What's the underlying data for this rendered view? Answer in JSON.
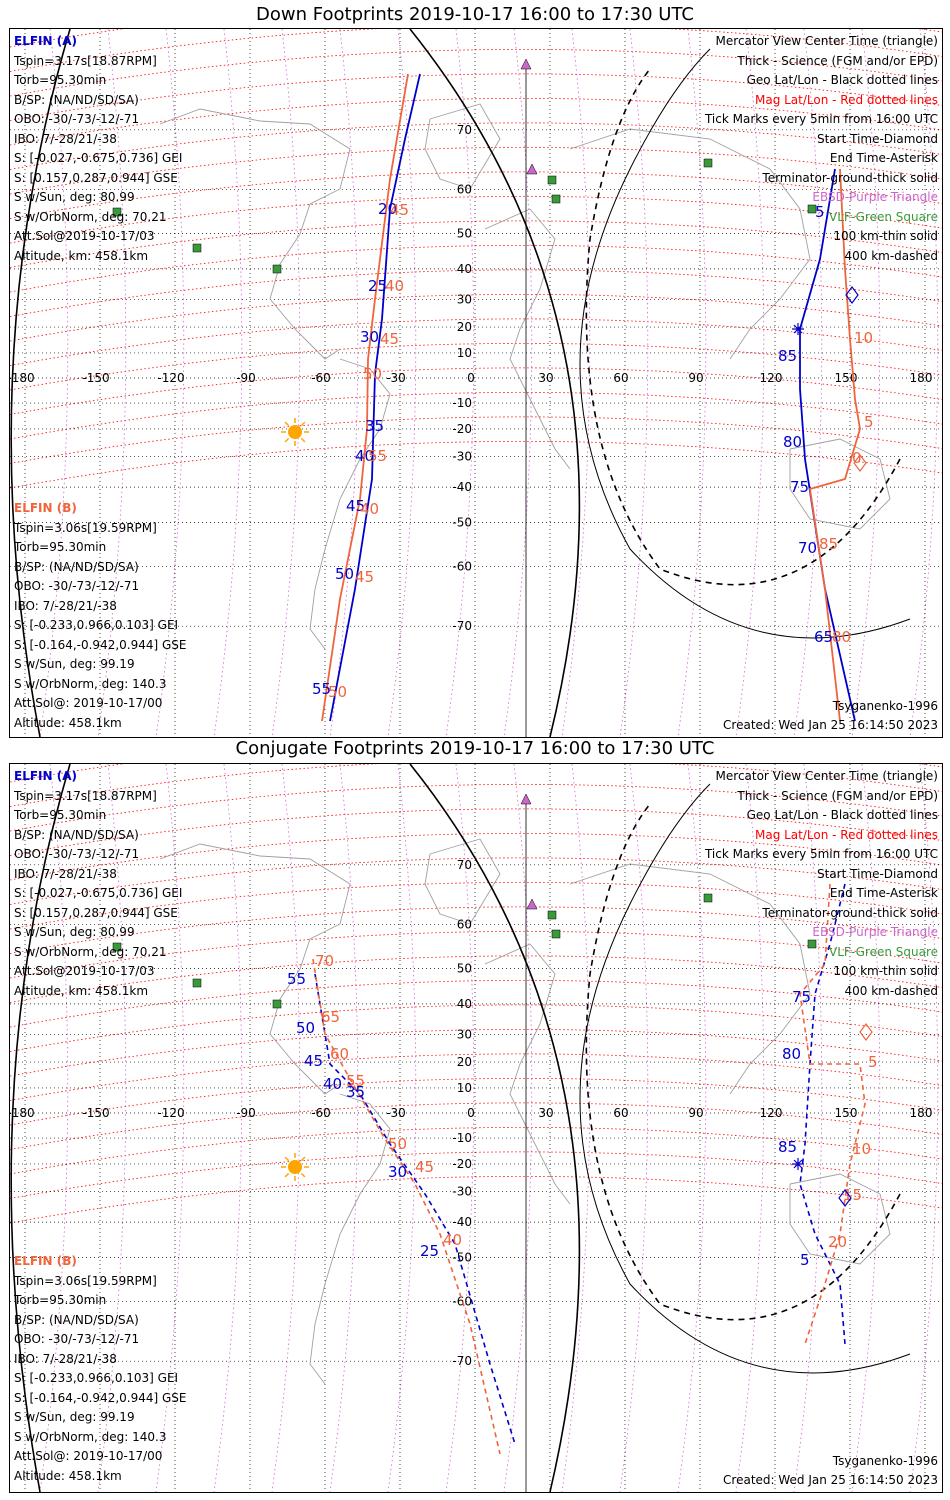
{
  "colors": {
    "elfin_a": "#0000cc",
    "elfin_b": "#f0643c",
    "mag_grid": "#ff0000",
    "geo_grid": "#000000",
    "ebsd": "#cc66cc",
    "vlf": "#3a9a3a",
    "sun": "#ffa500",
    "coast": "#a0a0a0"
  },
  "panels": [
    {
      "title": "Down Footprints 2019-10-17 16:00 to 17:30 UTC",
      "elfin_a": {
        "header": "ELFIN (A)",
        "lines": [
          "Tspin=3.17s[18.87RPM]",
          "Torb=95.30min",
          "B/SP: (NA/ND/SD/SA)",
          "OBO: -30/-73/-12/-71",
          "IBO: 7/-28/21/-38",
          "S: [-0.027,-0.675,0.736] GEI",
          "S: [0.157,0.287,0.944] GSE",
          "S w/Sun, deg: 80.99",
          "S w/OrbNorm, deg: 70.21",
          "Att.Sol@2019-10-17/03",
          "Altitude, km: 458.1km"
        ]
      },
      "elfin_b": {
        "header": "ELFIN (B)",
        "lines": [
          "Tspin=3.06s[19.59RPM]",
          "Torb=95.30min",
          "B/SP: (NA/ND/SD/SA)",
          "OBO: -30/-73/-12/-71",
          "IBO: 7/-28/21/-38",
          "S: [-0.233,0.966,0.103] GEI",
          "S: [-0.164,-0.942,0.944] GSE",
          "S w/Sun, deg: 99.19",
          "S w/OrbNorm, deg: 140.3",
          "Att.Sol@: 2019-10-17/00",
          "Altitude: 458.1km"
        ]
      },
      "legend": [
        "Mercator View Center Time (triangle)",
        "Thick - Science (FGM and/or EPD)",
        "Geo Lat/Lon - Black dotted lines",
        "Mag Lat/Lon - Red dotted lines",
        "Tick Marks every 5min from 16:00 UTC",
        "Start Time-Diamond",
        "End Time-Asterisk",
        "Terminator-ground-thick solid",
        "EBSD-Purple Triangle",
        "VLF-Green Square",
        "100 km-thin solid",
        "400 km-dashed"
      ],
      "model": "Tsyganenko-1996",
      "created": "Created: Wed Jan 25 16:14:50 2023",
      "a_ticks": [
        "20",
        "25",
        "30",
        "35",
        "40",
        "45",
        "50",
        "55",
        "5",
        "85",
        "80",
        "75",
        "70",
        "65"
      ],
      "b_ticks": [
        "45",
        "40",
        "45",
        "50",
        "55",
        "40",
        "45",
        "50",
        "10",
        "5",
        "0",
        "85",
        "80"
      ]
    },
    {
      "title": "Conjugate Footprints 2019-10-17 16:00 to 17:30 UTC",
      "elfin_a": {
        "header": "ELFIN (A)",
        "lines": [
          "Tspin=3.17s[18.87RPM]",
          "Torb=95.30min",
          "B/SP: (NA/ND/SD/SA)",
          "OBO: -30/-73/-12/-71",
          "IBO: 7/-28/21/-38",
          "S: [-0.027,-0.675,0.736] GEI",
          "S: [0.157,0.287,0.944] GSE",
          "S w/Sun, deg: 80.99",
          "S w/OrbNorm, deg: 70.21",
          "Att.Sol@2019-10-17/03",
          "Altitude, km: 458.1km"
        ]
      },
      "elfin_b": {
        "header": "ELFIN (B)",
        "lines": [
          "Tspin=3.06s[19.59RPM]",
          "Torb=95.30min",
          "B/SP: (NA/ND/SD/SA)",
          "OBO: -30/-73/-12/-71",
          "IBO: 7/-28/21/-38",
          "S: [-0.233,0.966,0.103] GEI",
          "S: [-0.164,-0.942,0.944] GSE",
          "S w/Sun, deg: 99.19",
          "S w/OrbNorm, deg: 140.3",
          "Att.Sol@: 2019-10-17/00",
          "Altitude: 458.1km"
        ]
      },
      "legend": [
        "Mercator View Center Time (triangle)",
        "Thick - Science (FGM and/or EPD)",
        "Geo Lat/Lon - Black dotted lines",
        "Mag Lat/Lon - Red dotted lines",
        "Tick Marks every 5min from 16:00 UTC",
        "Start Time-Diamond",
        "End Time-Asterisk",
        "Terminator-ground-thick solid",
        "EBSD-Purple Triangle",
        "VLF-Green Square",
        "100 km-thin solid",
        "400 km-dashed"
      ],
      "model": "Tsyganenko-1996",
      "created": "Created: Wed Jan 25 16:14:50 2023",
      "a_ticks": [
        "55",
        "50",
        "45",
        "40",
        "35",
        "30",
        "25",
        "5",
        "85",
        "80",
        "75"
      ],
      "b_ticks": [
        "70",
        "65",
        "60",
        "55",
        "50",
        "45",
        "40",
        "10",
        "15",
        "20",
        "5"
      ]
    }
  ],
  "map": {
    "lon_ticks": [
      "-180",
      "-150",
      "-120",
      "-90",
      "-60",
      "-30",
      "0",
      "30",
      "60",
      "90",
      "120",
      "150",
      "180"
    ],
    "lat_ticks": [
      "70",
      "60",
      "50",
      "40",
      "30",
      "20",
      "10",
      "-10",
      "-20",
      "-30",
      "-40",
      "-50",
      "-60",
      "-70"
    ],
    "lat_values": [
      70,
      60,
      50,
      40,
      30,
      20,
      10,
      -10,
      -20,
      -30,
      -40,
      -50,
      -60,
      -70
    ],
    "lon_values": [
      -180,
      -150,
      -120,
      -90,
      -60,
      -30,
      0,
      30,
      60,
      90,
      120,
      150,
      180
    ]
  }
}
